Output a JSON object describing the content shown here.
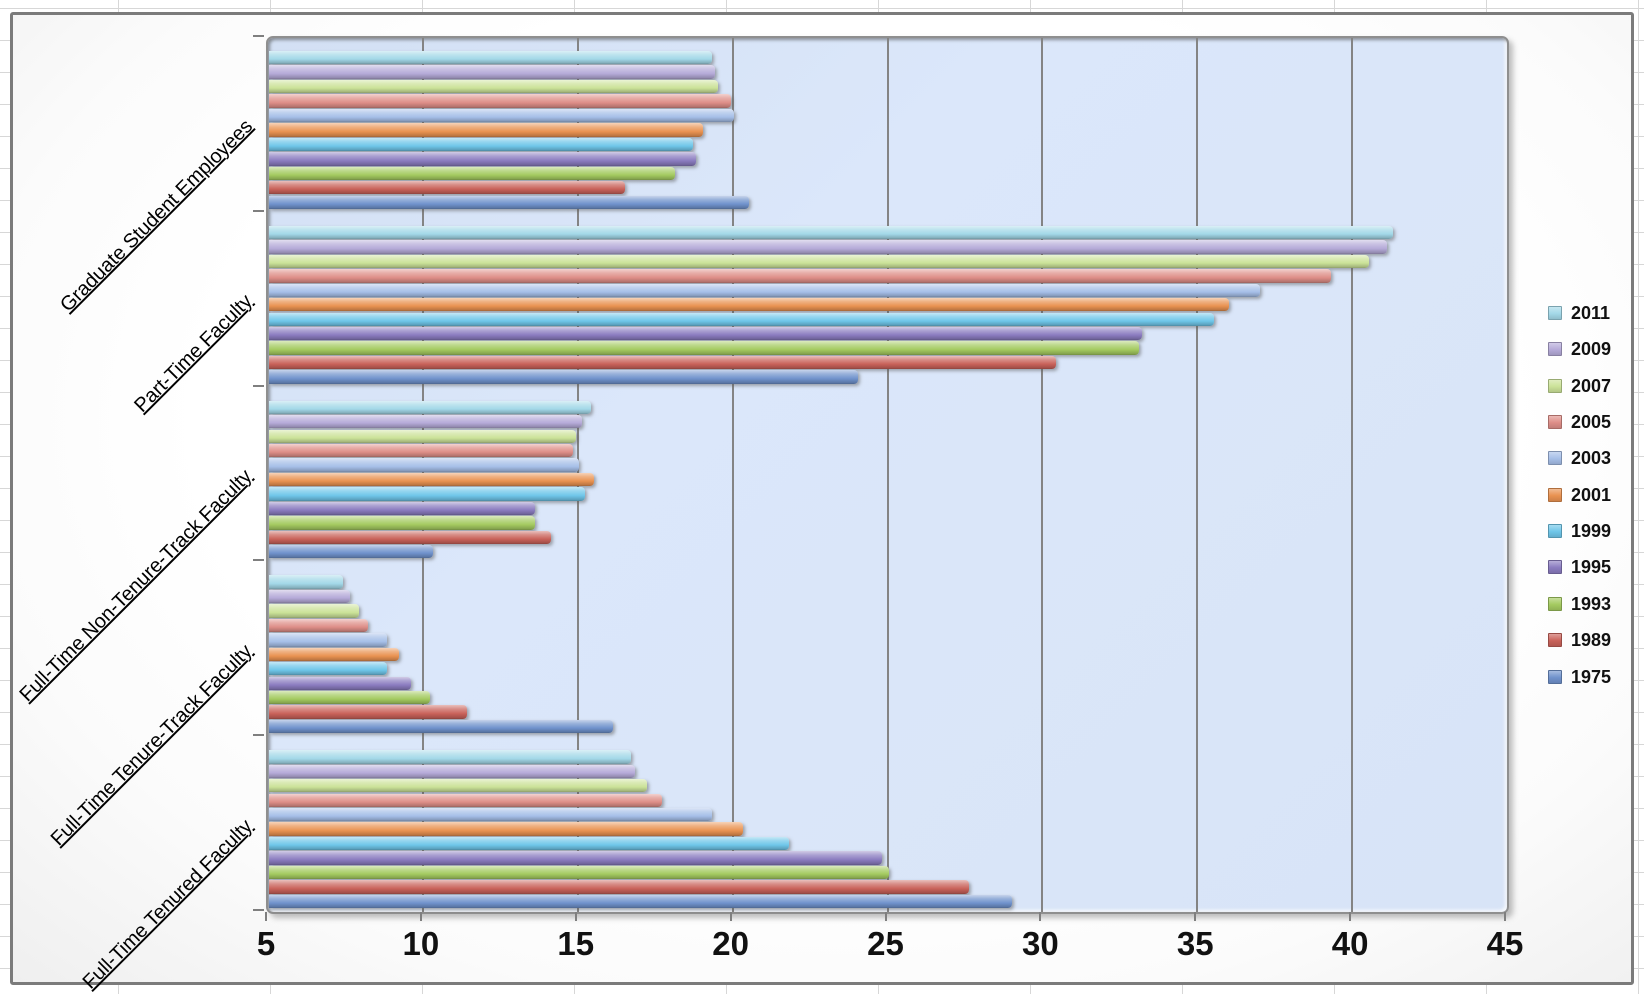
{
  "chart_data": {
    "type": "bar",
    "orientation": "horizontal",
    "title": "",
    "categories": [
      "Graduate Student Employees",
      "Part-Time Faculty",
      "Full-Time Non-Tenure-Track Faculty",
      "Full-Time Tenure-Track Faculty",
      "Full-Time Tenured Faculty"
    ],
    "series": [
      {
        "name": "2011",
        "color": "#a3d8e8",
        "values": [
          19.3,
          41.3,
          15.4,
          7.4,
          16.7
        ]
      },
      {
        "name": "2009",
        "color": "#b5aad8",
        "values": [
          19.4,
          41.1,
          15.1,
          7.6,
          16.8
        ]
      },
      {
        "name": "2007",
        "color": "#cbe298",
        "values": [
          19.5,
          40.5,
          14.9,
          7.9,
          17.2
        ]
      },
      {
        "name": "2005",
        "color": "#de8e88",
        "values": [
          19.9,
          39.3,
          14.8,
          8.2,
          17.7
        ]
      },
      {
        "name": "2003",
        "color": "#a6bfe8",
        "values": [
          20.0,
          37.0,
          15.0,
          8.8,
          19.3
        ]
      },
      {
        "name": "2001",
        "color": "#e99251",
        "values": [
          19.0,
          36.0,
          15.5,
          9.2,
          20.3
        ]
      },
      {
        "name": "1999",
        "color": "#6fc6e9",
        "values": [
          18.7,
          35.5,
          15.2,
          8.8,
          21.8
        ]
      },
      {
        "name": "1995",
        "color": "#8b7cc0",
        "values": [
          18.8,
          33.2,
          13.6,
          9.6,
          24.8
        ]
      },
      {
        "name": "1993",
        "color": "#a4ca60",
        "values": [
          18.1,
          33.1,
          13.6,
          10.2,
          25.0
        ]
      },
      {
        "name": "1989",
        "color": "#c9625a",
        "values": [
          16.5,
          30.4,
          14.1,
          11.4,
          27.6
        ]
      },
      {
        "name": "1975",
        "color": "#7092cc",
        "values": [
          20.5,
          24.0,
          10.3,
          16.1,
          29.0
        ]
      }
    ],
    "x_axis": {
      "min": 5,
      "max": 45,
      "tick_step": 5,
      "tick_labels": [
        "5",
        "10",
        "15",
        "20",
        "25",
        "30",
        "35",
        "40",
        "45"
      ]
    },
    "grid": true,
    "gridline_values": [
      10,
      15,
      20,
      25,
      30,
      35,
      40
    ],
    "legend_position": "right",
    "plot_background": "#d9e5f7"
  }
}
